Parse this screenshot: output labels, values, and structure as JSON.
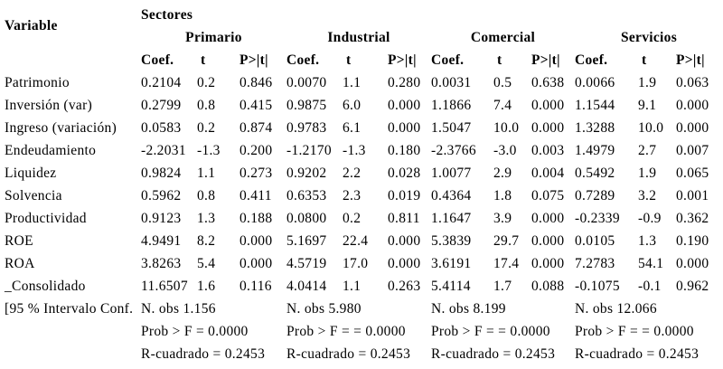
{
  "page": {
    "background": "#ffffff",
    "text_color": "#000000"
  },
  "table": {
    "variable_header": "Variable",
    "sectores_header": "Sectores",
    "sectors": [
      "Primario",
      "Industrial",
      "Comercial",
      "Servicios"
    ],
    "col_headers": {
      "coef": "Coef.",
      "t": "t",
      "p": "P>|t|"
    },
    "rows": [
      {
        "variable": "Patrimonio",
        "groups": [
          [
            "0.2104",
            "0.2",
            "0.846"
          ],
          [
            "0.0070",
            "1.1",
            "0.280"
          ],
          [
            "0.0031",
            "0.5",
            "0.638"
          ],
          [
            "0.0066",
            "1.9",
            "0.063"
          ]
        ]
      },
      {
        "variable": "Inversión (var)",
        "groups": [
          [
            "0.2799",
            "0.8",
            "0.415"
          ],
          [
            "0.9875",
            "6.0",
            "0.000"
          ],
          [
            "1.1866",
            "7.4",
            "0.000"
          ],
          [
            "1.1544",
            "9.1",
            "0.000"
          ]
        ]
      },
      {
        "variable": "Ingreso (variación)",
        "groups": [
          [
            "0.0583",
            "0.2",
            "0.874"
          ],
          [
            "0.9783",
            "6.1",
            "0.000"
          ],
          [
            "1.5047",
            "10.0",
            "0.000"
          ],
          [
            "1.3288",
            "10.0",
            "0.000"
          ]
        ]
      },
      {
        "variable": "Endeudamiento",
        "groups": [
          [
            "-2.2031",
            "-1.3",
            "0.200"
          ],
          [
            "-1.2170",
            "-1.3",
            "0.180"
          ],
          [
            "-2.3766",
            "-3.0",
            "0.003"
          ],
          [
            "1.4979",
            "2.7",
            "0.007"
          ]
        ]
      },
      {
        "variable": "Liquidez",
        "groups": [
          [
            "0.9824",
            "1.1",
            "0.273"
          ],
          [
            "0.9202",
            "2.2",
            "0.028"
          ],
          [
            "1.0077",
            "2.9",
            "0.004"
          ],
          [
            "0.5492",
            "1.9",
            "0.065"
          ]
        ]
      },
      {
        "variable": "Solvencia",
        "groups": [
          [
            "0.5962",
            "0.8",
            "0.411"
          ],
          [
            "0.6353",
            "2.3",
            "0.019"
          ],
          [
            "0.4364",
            "1.8",
            "0.075"
          ],
          [
            "0.7289",
            "3.2",
            "0.001"
          ]
        ]
      },
      {
        "variable": "Productividad",
        "groups": [
          [
            "0.9123",
            "1.3",
            "0.188"
          ],
          [
            "0.0800",
            "0.2",
            "0.811"
          ],
          [
            "1.1647",
            "3.9",
            "0.000"
          ],
          [
            "-0.2339",
            "-0.9",
            "0.362"
          ]
        ]
      },
      {
        "variable": "ROE",
        "groups": [
          [
            "4.9491",
            "8.2",
            "0.000"
          ],
          [
            "5.1697",
            "22.4",
            "0.000"
          ],
          [
            "5.3839",
            "29.7",
            "0.000"
          ],
          [
            "0.0105",
            "1.3",
            "0.190"
          ]
        ]
      },
      {
        "variable": "ROA",
        "groups": [
          [
            "3.8263",
            "5.4",
            "0.000"
          ],
          [
            "4.5719",
            "17.0",
            "0.000"
          ],
          [
            "3.6191",
            "17.4",
            "0.000"
          ],
          [
            "7.2783",
            "54.1",
            "0.000"
          ]
        ]
      },
      {
        "variable": "_Consolidado",
        "groups": [
          [
            "11.6507",
            "1.6",
            "0.116"
          ],
          [
            "4.0414",
            "1.1",
            "0.263"
          ],
          [
            "5.4114",
            "1.7",
            "0.088"
          ],
          [
            "-0.1075",
            "-0.1",
            "0.962"
          ]
        ]
      }
    ],
    "footer": {
      "label": "[95 % Intervalo Conf.",
      "n_obs": [
        "N. obs 1.156",
        "N. obs 5.980",
        "N. obs 8.199",
        "N. obs 12.066"
      ],
      "prob_f": [
        "Prob > F = 0.0000",
        "Prob > F = = 0.0000",
        "Prob > F = = 0.0000",
        "Prob > F = = 0.0000"
      ],
      "r_squared": [
        "R-cuadrado = 0.2453",
        "R-cuadrado = 0.2453",
        "R-cuadrado = 0.2453",
        "R-cuadrado = 0.2453"
      ]
    }
  }
}
